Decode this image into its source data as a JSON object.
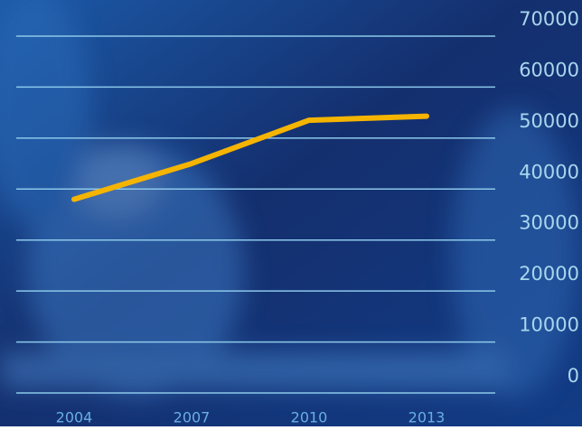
{
  "chart_data": {
    "type": "line",
    "categories": [
      "2004",
      "2007",
      "2010",
      "2013"
    ],
    "series": [
      {
        "color": "#f5b400",
        "values": [
          38000,
          45000,
          53500,
          54300
        ]
      }
    ],
    "ylim": [
      0,
      70000
    ],
    "yticks": [
      0,
      10000,
      20000,
      30000,
      40000,
      50000,
      60000,
      70000
    ],
    "grid": true
  }
}
